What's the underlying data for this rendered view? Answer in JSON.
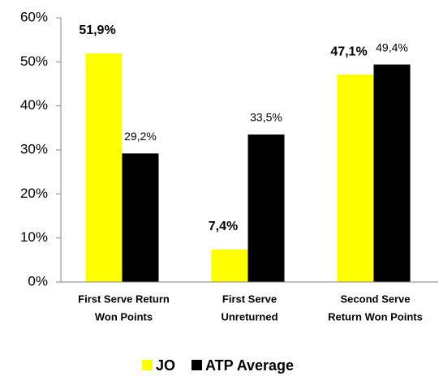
{
  "chart_data": {
    "type": "bar",
    "categories": [
      [
        "First Serve Return",
        "Won Points"
      ],
      [
        "First Serve",
        "Unreturned"
      ],
      [
        "Second Serve",
        "Return Won Points"
      ]
    ],
    "series": [
      {
        "name": "JO",
        "color": "#ffff00",
        "values": [
          51.9,
          7.4,
          47.1
        ],
        "value_labels": [
          "51,9%",
          "7,4%",
          "47,1%"
        ]
      },
      {
        "name": "ATP Average",
        "color": "#000000",
        "values": [
          29.2,
          33.5,
          49.4
        ],
        "value_labels": [
          "29,2%",
          "33,5%",
          "49,4%"
        ]
      }
    ],
    "ylim": [
      0,
      60
    ],
    "yticks": [
      {
        "value": 0,
        "label": "0%"
      },
      {
        "value": 10,
        "label": "10%"
      },
      {
        "value": 20,
        "label": "20%"
      },
      {
        "value": 30,
        "label": "30%"
      },
      {
        "value": 40,
        "label": "40%"
      },
      {
        "value": 50,
        "label": "50%"
      },
      {
        "value": 60,
        "label": "60%"
      }
    ],
    "legend": "bottom"
  }
}
